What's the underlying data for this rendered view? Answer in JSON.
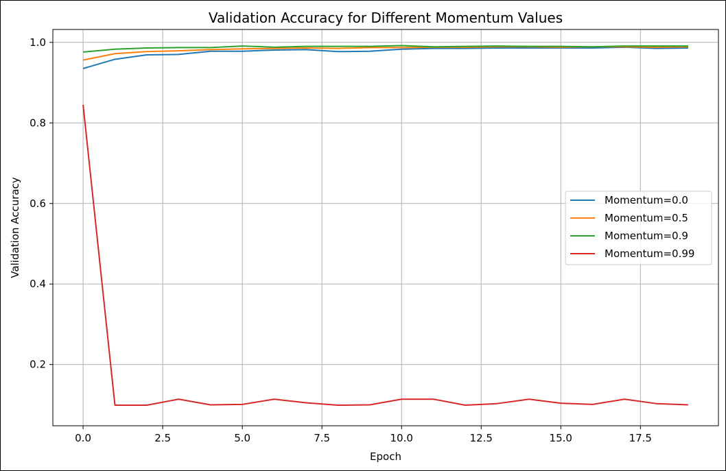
{
  "chart_data": {
    "type": "line",
    "title": "Validation Accuracy for Different Momentum Values",
    "xlabel": "Epoch",
    "ylabel": "Validation Accuracy",
    "xlim": [
      -0.95,
      19.95
    ],
    "ylim": [
      0.048,
      1.032
    ],
    "xticks": [
      0.0,
      2.5,
      5.0,
      7.5,
      10.0,
      12.5,
      15.0,
      17.5
    ],
    "xtick_labels": [
      "0.0",
      "2.5",
      "5.0",
      "7.5",
      "10.0",
      "12.5",
      "15.0",
      "17.5"
    ],
    "yticks": [
      0.2,
      0.4,
      0.6,
      0.8,
      1.0
    ],
    "ytick_labels": [
      "0.2",
      "0.4",
      "0.6",
      "0.8",
      "1.0"
    ],
    "grid": true,
    "legend_position": "center-right",
    "x": [
      0,
      1,
      2,
      3,
      4,
      5,
      6,
      7,
      8,
      9,
      10,
      11,
      12,
      13,
      14,
      15,
      16,
      17,
      18,
      19
    ],
    "series": [
      {
        "name": "Momentum=0.0",
        "color": "#1f77b4",
        "values": [
          0.935,
          0.958,
          0.969,
          0.97,
          0.978,
          0.978,
          0.981,
          0.982,
          0.977,
          0.978,
          0.983,
          0.985,
          0.985,
          0.986,
          0.986,
          0.986,
          0.986,
          0.988,
          0.985,
          0.986
        ]
      },
      {
        "name": "Momentum=0.5",
        "color": "#ff7f0e",
        "values": [
          0.956,
          0.972,
          0.977,
          0.979,
          0.982,
          0.984,
          0.985,
          0.986,
          0.985,
          0.987,
          0.987,
          0.988,
          0.988,
          0.989,
          0.989,
          0.988,
          0.989,
          0.989,
          0.988,
          0.989
        ]
      },
      {
        "name": "Momentum=0.9",
        "color": "#2ca02c",
        "values": [
          0.976,
          0.983,
          0.986,
          0.987,
          0.987,
          0.991,
          0.988,
          0.99,
          0.99,
          0.99,
          0.992,
          0.989,
          0.99,
          0.991,
          0.99,
          0.99,
          0.989,
          0.991,
          0.991,
          0.991
        ]
      },
      {
        "name": "Momentum=0.99",
        "color": "#d62728",
        "values": [
          0.845,
          0.099,
          0.099,
          0.114,
          0.1,
          0.101,
          0.114,
          0.105,
          0.099,
          0.1,
          0.114,
          0.114,
          0.099,
          0.103,
          0.114,
          0.104,
          0.101,
          0.114,
          0.103,
          0.1
        ]
      }
    ]
  }
}
